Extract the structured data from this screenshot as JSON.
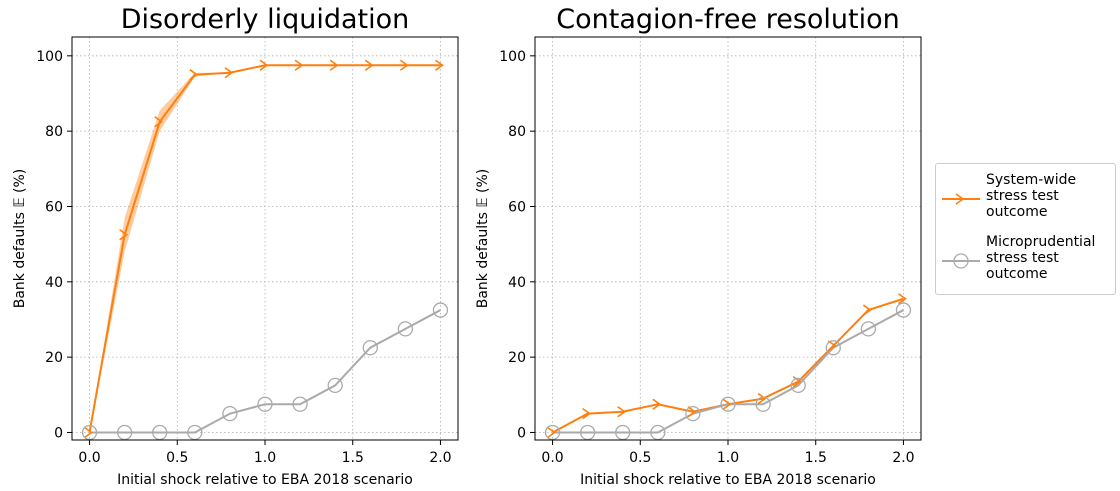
{
  "chart_data": [
    {
      "type": "line",
      "title": "Disorderly liquidation",
      "x_label": "Initial shock relative to EBA 2018 scenario",
      "y_label": "Bank defaults 𝔼 (%)",
      "x": [
        0,
        0.2,
        0.4,
        0.6,
        0.8,
        1.0,
        1.2,
        1.4,
        1.6,
        1.8,
        2.0
      ],
      "series": [
        {
          "color": "#ff7f0e",
          "marker": "arrow",
          "values": [
            0,
            52.5,
            82.5,
            95,
            95.5,
            97.5,
            97.5,
            97.5,
            97.5,
            97.5,
            97.5
          ],
          "band": {
            "lower": [
              0,
              48,
              80,
              94.5,
              95.5,
              97.5,
              97.5,
              97.5,
              97.5,
              97.5,
              97.5
            ],
            "upper": [
              0,
              57,
              85.5,
              95.5,
              95.5,
              97.5,
              97.5,
              97.5,
              97.5,
              97.5,
              97.5
            ]
          }
        },
        {
          "color": "#aaaaaa",
          "marker": "circle",
          "values": [
            0,
            0,
            0,
            0,
            5,
            7.5,
            7.5,
            12.5,
            22.5,
            27.5,
            32.5
          ]
        }
      ],
      "xlim": [
        -0.1,
        2.1
      ],
      "ylim": [
        -2,
        105
      ],
      "xticks": [
        {
          "value": 0,
          "label": "0.0"
        },
        0.5,
        {
          "value": 1,
          "label": "1.0"
        },
        1.5,
        {
          "value": 2,
          "label": "2.0"
        }
      ],
      "yticks": [
        0,
        20,
        40,
        60,
        80,
        100
      ],
      "grid": true
    },
    {
      "type": "line",
      "title": "Contagion-free resolution",
      "x_label": "Initial shock relative to EBA 2018 scenario",
      "y_label": "Bank defaults 𝔼 (%)",
      "x": [
        0,
        0.2,
        0.4,
        0.6,
        0.8,
        1.0,
        1.2,
        1.4,
        1.6,
        1.8,
        2.0
      ],
      "series": [
        {
          "name": "System-wide\nstress test\noutcome",
          "color": "#ff7f0e",
          "marker": "arrow",
          "values": [
            0,
            5,
            5.5,
            7.5,
            5.5,
            7.5,
            9,
            13.5,
            23,
            32.5,
            35.5
          ]
        },
        {
          "name": "Microprudential\nstress test\noutcome",
          "color": "#aaaaaa",
          "marker": "circle",
          "values": [
            0,
            0,
            0,
            0,
            5,
            7.5,
            7.5,
            12.5,
            22.5,
            27.5,
            32.5
          ]
        }
      ],
      "xlim": [
        -0.1,
        2.1
      ],
      "ylim": [
        -2,
        105
      ],
      "xticks": [
        {
          "value": 0,
          "label": "0.0"
        },
        0.5,
        {
          "value": 1,
          "label": "1.0"
        },
        1.5,
        {
          "value": 2,
          "label": "2.0"
        }
      ],
      "yticks": [
        0,
        20,
        40,
        60,
        80,
        100
      ],
      "grid": true,
      "legend": "outside right"
    }
  ]
}
